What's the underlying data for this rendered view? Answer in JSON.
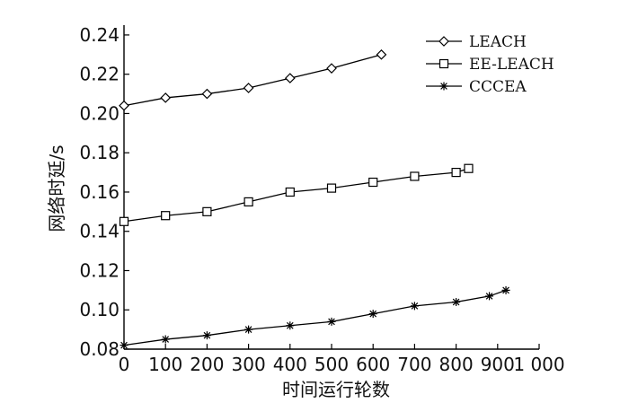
{
  "chart_data": {
    "type": "line",
    "xlabel": "时间运行轮数",
    "ylabel": "网络时延/s",
    "xlim": [
      0,
      1000
    ],
    "ylim": [
      0.08,
      0.245
    ],
    "x_ticks": [
      0,
      100,
      200,
      300,
      400,
      500,
      600,
      700,
      800,
      900,
      1000
    ],
    "x_tick_labels": [
      "0",
      "100",
      "200",
      "300",
      "400",
      "500",
      "600",
      "700",
      "800",
      "900",
      "1 000"
    ],
    "y_ticks": [
      0.08,
      0.1,
      0.12,
      0.14,
      0.16,
      0.18,
      0.2,
      0.22,
      0.24
    ],
    "y_tick_labels": [
      "0.08",
      "0.10",
      "0.12",
      "0.14",
      "0.16",
      "0.18",
      "0.20",
      "0.22",
      "0.24"
    ],
    "grid": false,
    "legend_position": "top-right",
    "series": [
      {
        "name": "LEACH",
        "marker": "diamond",
        "x": [
          0,
          100,
          200,
          300,
          400,
          500,
          620
        ],
        "y": [
          0.204,
          0.208,
          0.21,
          0.213,
          0.218,
          0.223,
          0.23
        ]
      },
      {
        "name": "EE-LEACH",
        "marker": "square",
        "x": [
          0,
          100,
          200,
          300,
          400,
          500,
          600,
          700,
          800,
          830
        ],
        "y": [
          0.145,
          0.148,
          0.15,
          0.155,
          0.16,
          0.162,
          0.165,
          0.168,
          0.17,
          0.172
        ]
      },
      {
        "name": "CCCEA",
        "marker": "star",
        "x": [
          0,
          100,
          200,
          300,
          400,
          500,
          600,
          700,
          800,
          880,
          920
        ],
        "y": [
          0.082,
          0.085,
          0.087,
          0.09,
          0.092,
          0.094,
          0.098,
          0.102,
          0.104,
          0.107,
          0.11
        ]
      }
    ]
  }
}
